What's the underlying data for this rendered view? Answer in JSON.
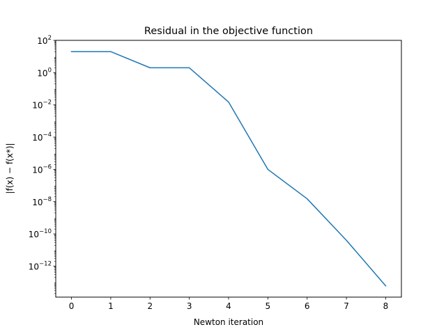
{
  "chart_data": {
    "type": "line",
    "title": "Residual in the objective function",
    "xlabel": "Newton iteration",
    "ylabel": "|f(x) − f(x*)|",
    "yscale": "log",
    "x": [
      0,
      1,
      2,
      3,
      4,
      5,
      6,
      7,
      8
    ],
    "series": [
      {
        "color": "#1f77b4",
        "values": [
          20,
          20,
          2,
          2,
          0.015,
          1e-06,
          1.5e-08,
          4e-11,
          6e-14
        ]
      }
    ],
    "xticks": [
      0,
      1,
      2,
      3,
      4,
      5,
      6,
      7,
      8
    ],
    "yticks": [
      {
        "exp": "2",
        "value": 100
      },
      {
        "exp": "0",
        "value": 1
      },
      {
        "exp": "−2",
        "value": 0.01
      },
      {
        "exp": "−4",
        "value": 0.0001
      },
      {
        "exp": "−6",
        "value": 1e-06
      },
      {
        "exp": "−8",
        "value": 1e-08
      },
      {
        "exp": "−10",
        "value": 1e-10
      },
      {
        "exp": "−12",
        "value": 1e-12
      }
    ],
    "ytick_base": "10",
    "xlim": [
      -0.4,
      8.4
    ],
    "ylim": [
      1.2e-14,
      100
    ],
    "grid": false,
    "legend": "none"
  }
}
